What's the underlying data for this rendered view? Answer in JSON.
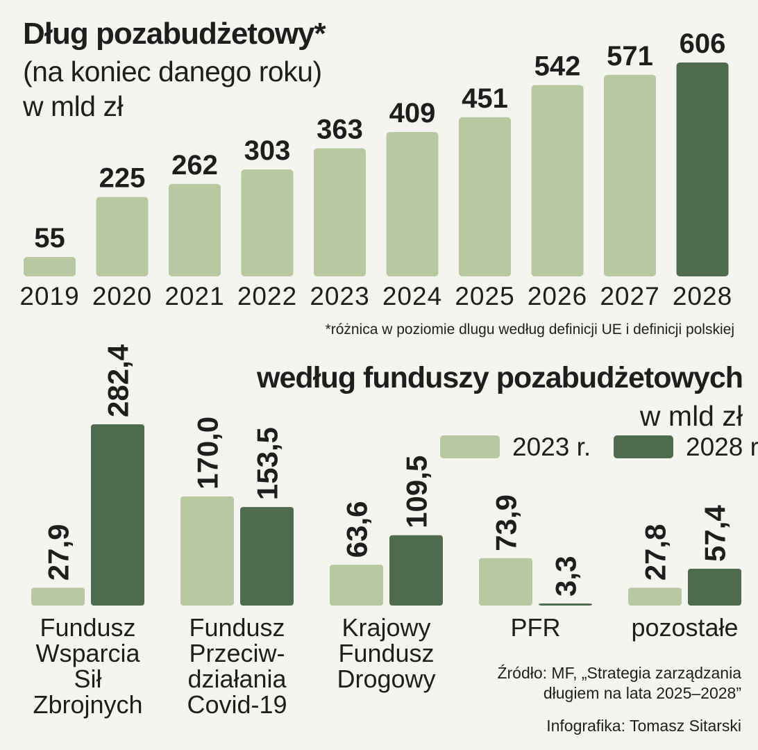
{
  "colors": {
    "light": "#b8c8a0",
    "dark": "#4f6b4e",
    "text": "#1e1e1e",
    "background": "#f5f5f0"
  },
  "footnote": "*różnica w poziomie dlugu według definicji UE i definicji polskiej",
  "source": [
    "Źródło: MF, „Strategia zarządzania",
    "długiem na lata 2025–2028”"
  ],
  "credit": "Infografika: Tomasz Sitarski",
  "chart_data": [
    {
      "type": "bar",
      "title": "Dług pozabudżetowy*",
      "subtitle": [
        "(na koniec danego roku)",
        "w mld zł"
      ],
      "categories": [
        "2019",
        "2020",
        "2021",
        "2022",
        "2023",
        "2024",
        "2025",
        "2026",
        "2027",
        "2028"
      ],
      "values": [
        55,
        225,
        262,
        303,
        363,
        409,
        451,
        542,
        571,
        606
      ],
      "value_labels": [
        "55",
        "225",
        "262",
        "303",
        "363",
        "409",
        "451",
        "542",
        "571",
        "606"
      ],
      "highlight_index": 9,
      "ylim": [
        0,
        606
      ]
    },
    {
      "type": "bar",
      "title": "według funduszy pozabudżetowych",
      "unit": "w mld zł",
      "categories": [
        [
          "Fundusz",
          "Wsparcia",
          "Sił",
          "Zbrojnych"
        ],
        [
          "Fundusz",
          "Przeciw-",
          "działania",
          "Covid-19"
        ],
        [
          "Krajowy",
          "Fundusz",
          "Drogowy"
        ],
        [
          "PFR"
        ],
        [
          "pozostałe"
        ]
      ],
      "series": [
        {
          "name": "2023 r.",
          "values": [
            27.9,
            170.0,
            63.6,
            73.9,
            27.8
          ],
          "labels": [
            "27,9",
            "170,0",
            "63,6",
            "73,9",
            "27,8"
          ]
        },
        {
          "name": "2028 r.",
          "values": [
            282.4,
            153.5,
            109.5,
            3.3,
            57.4
          ],
          "labels": [
            "282,4",
            "153,5",
            "109,5",
            "3,3",
            "57,4"
          ]
        }
      ],
      "legend": "top-right",
      "ylim": [
        0,
        282.4
      ]
    }
  ]
}
